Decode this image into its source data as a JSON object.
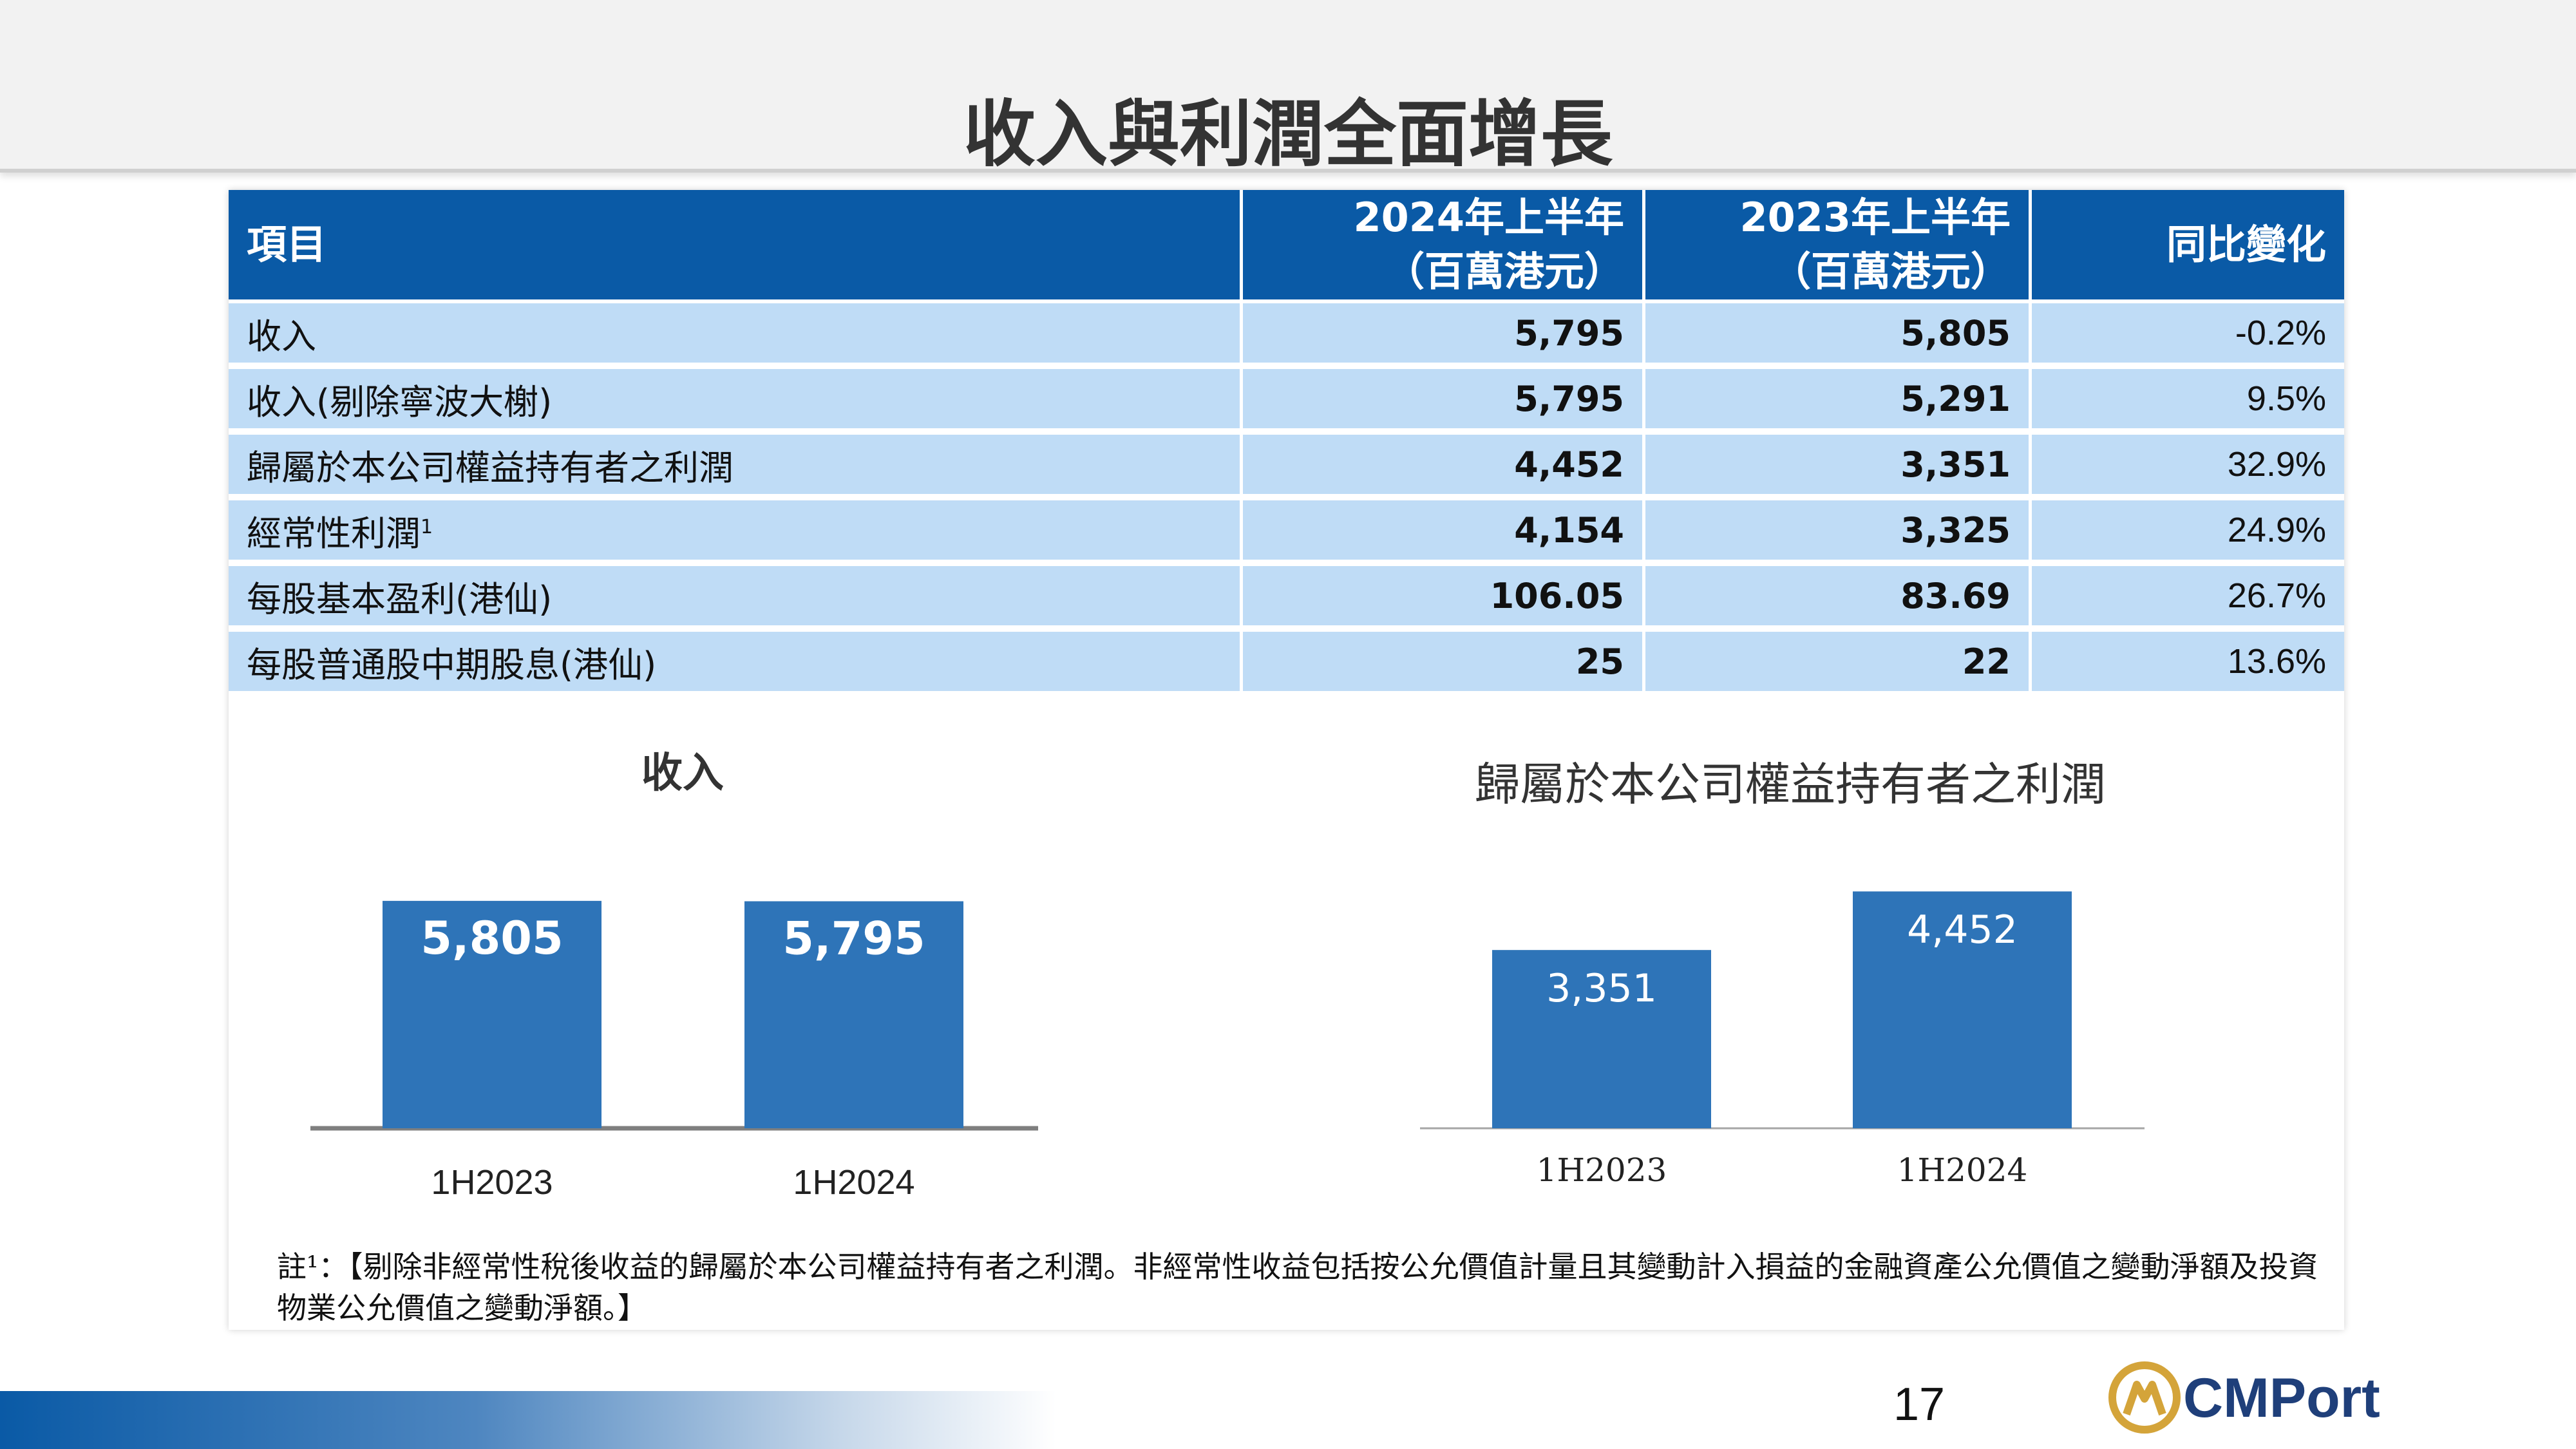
{
  "title": "收入與利潤全面增長",
  "table": {
    "headers": [
      "項目",
      "2024年上半年\n（百萬港元）",
      "2023年上半年\n（百萬港元）",
      "同比變化"
    ],
    "rows": [
      {
        "item": "收入",
        "h2024": "5,795",
        "h2023": "5,805",
        "change": "-0.2%"
      },
      {
        "item": "收入(剔除寧波大榭)",
        "h2024": "5,795",
        "h2023": "5,291",
        "change": "9.5%"
      },
      {
        "item": "歸屬於本公司權益持有者之利潤",
        "h2024": "4,452",
        "h2023": "3,351",
        "change": "32.9%"
      },
      {
        "item": "經常性利潤",
        "sup": "1",
        "h2024": "4,154",
        "h2023": "3,325",
        "change": "24.9%"
      },
      {
        "item": "每股基本盈利(港仙)",
        "h2024": "106.05",
        "h2023": "83.69",
        "change": "26.7%"
      },
      {
        "item": "每股普通股中期股息(港仙)",
        "h2024": "25",
        "h2023": "22",
        "change": "13.6%"
      }
    ]
  },
  "chart_data": [
    {
      "type": "bar",
      "title": "收入",
      "categories": [
        "1H2023",
        "1H2024"
      ],
      "values": [
        5805,
        5795
      ],
      "labels": [
        "5,805",
        "5,795"
      ],
      "color": "#2e74b8"
    },
    {
      "type": "bar",
      "title": "歸屬於本公司權益持有者之利潤",
      "categories": [
        "1H2023",
        "1H2024"
      ],
      "values": [
        3351,
        4452
      ],
      "labels": [
        "3,351",
        "4,452"
      ],
      "color": "#2e74b8"
    }
  ],
  "footnote": "註¹：【剔除非經常性稅後收益的歸屬於本公司權益持有者之利潤。非經常性收益包括按公允價值計量且其變動計入損益的金融資產公允價值之變動淨額及投資物業公允價值之變動淨額。】",
  "page_number": "17",
  "logo": {
    "text": "CMPort",
    "colors": {
      "navy": "#1f3f7a",
      "gold": "#d4a43a"
    }
  }
}
